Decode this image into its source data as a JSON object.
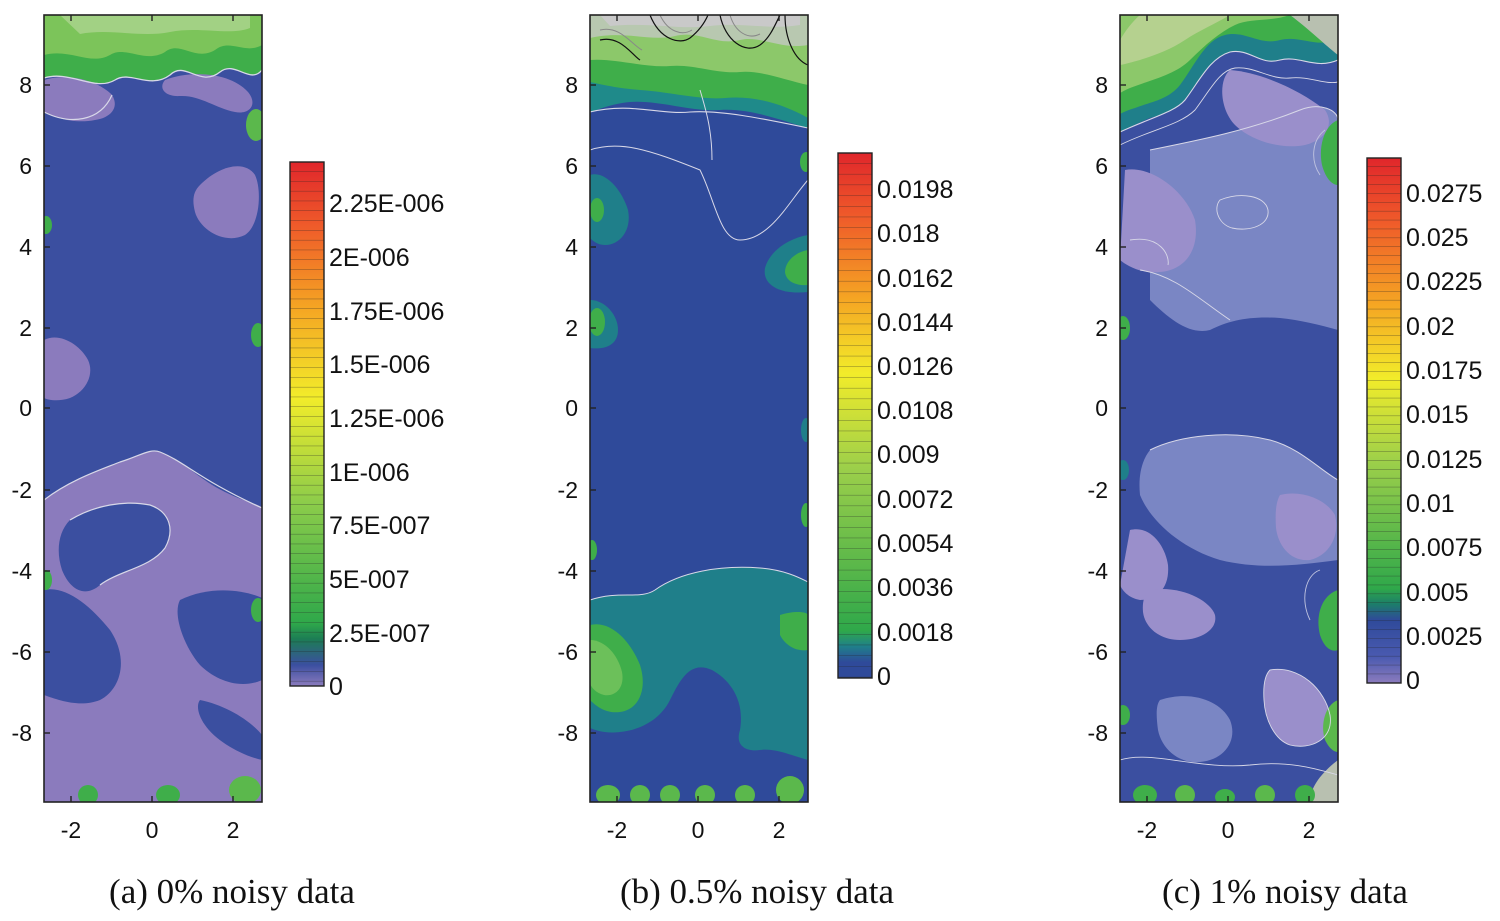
{
  "figure": {
    "panels": [
      {
        "caption": "(a) 0% noisy data",
        "colorbar_labels": [
          "2.25E-006",
          "2E-006",
          "1.75E-006",
          "1.5E-006",
          "1.25E-006",
          "1E-006",
          "7.5E-007",
          "5E-007",
          "2.5E-007",
          "0"
        ]
      },
      {
        "caption": "(b) 0.5% noisy data",
        "colorbar_labels": [
          "0.0198",
          "0.018",
          "0.0162",
          "0.0144",
          "0.0126",
          "0.0108",
          "0.009",
          "0.0072",
          "0.0054",
          "0.0036",
          "0.0018",
          "0"
        ]
      },
      {
        "caption": "(c) 1% noisy data",
        "colorbar_labels": [
          "0.0275",
          "0.025",
          "0.0225",
          "0.02",
          "0.0175",
          "0.015",
          "0.0125",
          "0.01",
          "0.0075",
          "0.005",
          "0.0025",
          "0"
        ]
      }
    ]
  },
  "chart_data": [
    {
      "type": "heatmap",
      "title": "(a) 0% noisy data",
      "xlabel": "",
      "ylabel": "",
      "x_ticks": [
        "-2",
        "0",
        "2"
      ],
      "y_ticks": [
        "8",
        "6",
        "4",
        "2",
        "0",
        "-2",
        "-4",
        "-6",
        "-8"
      ],
      "xlim": [
        -2.7,
        2.7
      ],
      "ylim": [
        -9.6,
        9.6
      ],
      "colorbar": {
        "min": 0,
        "max": 2.5e-06,
        "tick_values": [
          2.25e-06,
          2e-06,
          1.75e-06,
          1.5e-06,
          1.25e-06,
          1e-06,
          7.5e-07,
          5e-07,
          2.5e-07,
          0
        ],
        "tick_labels": [
          "2.25E-006",
          "2E-006",
          "1.75E-006",
          "1.5E-006",
          "1.25E-006",
          "1E-006",
          "7.5E-007",
          "5E-007",
          "2.5E-007",
          "0"
        ]
      },
      "dominant_level": "near 0 (blue / purple)",
      "high_regions": "top edge (green to yellow-green), small spots along left/right/bottom edges"
    },
    {
      "type": "heatmap",
      "title": "(b) 0.5% noisy data",
      "xlabel": "",
      "ylabel": "",
      "x_ticks": [
        "-2",
        "0",
        "2"
      ],
      "y_ticks": [
        "8",
        "6",
        "4",
        "2",
        "0",
        "-2",
        "-4",
        "-6",
        "-8"
      ],
      "xlim": [
        -2.7,
        2.7
      ],
      "ylim": [
        -9.6,
        9.6
      ],
      "colorbar": {
        "min": 0,
        "max": 0.0216,
        "tick_values": [
          0.0198,
          0.018,
          0.0162,
          0.0144,
          0.0126,
          0.0108,
          0.009,
          0.0072,
          0.0054,
          0.0036,
          0.0018,
          0
        ],
        "tick_labels": [
          "0.0198",
          "0.018",
          "0.0162",
          "0.0144",
          "0.0126",
          "0.0108",
          "0.009",
          "0.0072",
          "0.0054",
          "0.0036",
          "0.0018",
          "0"
        ]
      },
      "dominant_level": "near 0 (dark blue)",
      "high_regions": "top edge (green, gray/white contours), teal band near y=-5, green patches at lower-left"
    },
    {
      "type": "heatmap",
      "title": "(c) 1% noisy data",
      "xlabel": "",
      "ylabel": "",
      "x_ticks": [
        "-2",
        "0",
        "2"
      ],
      "y_ticks": [
        "8",
        "6",
        "4",
        "2",
        "0",
        "-2",
        "-4",
        "-6",
        "-8"
      ],
      "xlim": [
        -2.7,
        2.7
      ],
      "ylim": [
        -9.6,
        9.6
      ],
      "colorbar": {
        "min": 0,
        "max": 0.03,
        "tick_values": [
          0.0275,
          0.025,
          0.0225,
          0.02,
          0.0175,
          0.015,
          0.0125,
          0.01,
          0.0075,
          0.005,
          0.0025,
          0
        ],
        "tick_labels": [
          "0.0275",
          "0.025",
          "0.0225",
          "0.02",
          "0.0175",
          "0.015",
          "0.0125",
          "0.01",
          "0.0075",
          "0.005",
          "0.0025",
          "0"
        ]
      },
      "dominant_level": "low (blue / lavender)",
      "high_regions": "top edge and upper corners (green to yellow-green), green spots along edges"
    }
  ]
}
